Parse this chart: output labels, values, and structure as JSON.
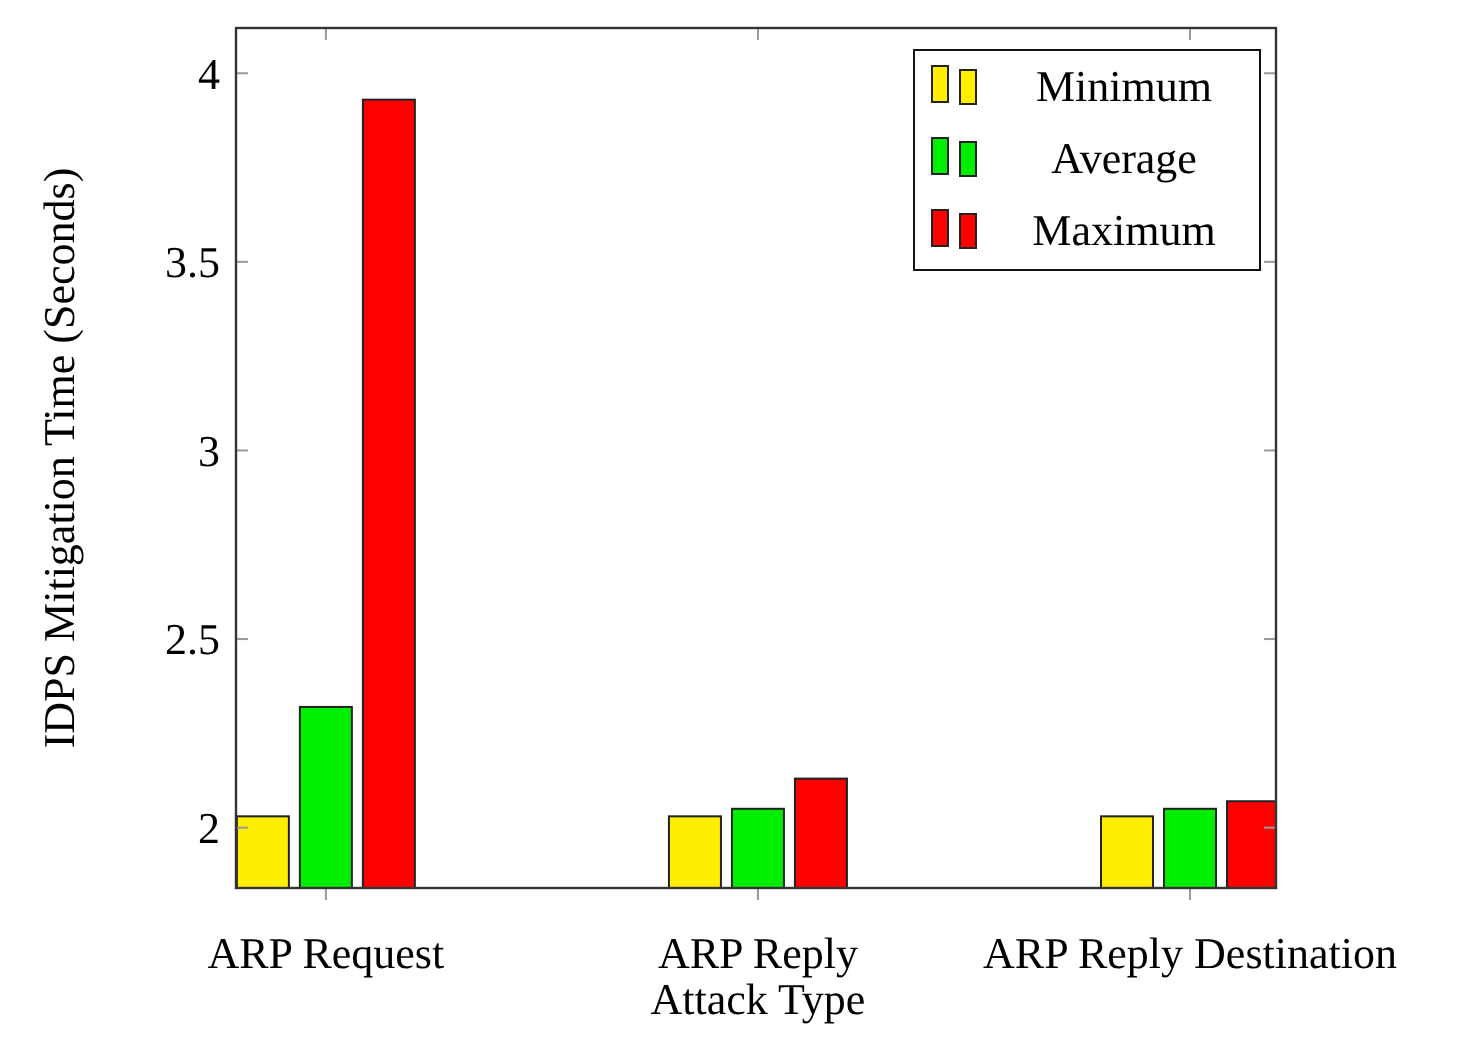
{
  "chart_data": {
    "type": "bar",
    "xlabel": "Attack Type",
    "ylabel": "IDPS Mitigation Time (Seconds)",
    "categories": [
      "ARP Request",
      "ARP Reply",
      "ARP Reply Destination"
    ],
    "series": [
      {
        "name": "Minimum",
        "color": "#ffee00",
        "values": [
          2.03,
          2.03,
          2.03
        ]
      },
      {
        "name": "Average",
        "color": "#00ee00",
        "values": [
          2.32,
          2.05,
          2.05
        ]
      },
      {
        "name": "Maximum",
        "color": "#ff0000",
        "values": [
          3.93,
          2.13,
          2.07
        ]
      }
    ],
    "ylim": [
      1.84,
      4.12
    ],
    "yticks": [
      {
        "value": 2,
        "label": "2"
      },
      {
        "value": 2.5,
        "label": "2.5"
      },
      {
        "value": 3,
        "label": "3"
      },
      {
        "value": 3.5,
        "label": "3.5"
      },
      {
        "value": 4,
        "label": "4"
      }
    ],
    "legend": "top right",
    "grid": false
  }
}
